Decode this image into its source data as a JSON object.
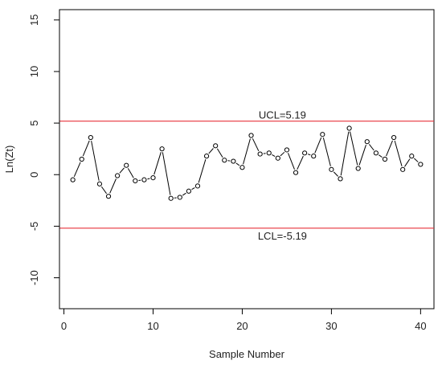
{
  "chart_data": {
    "type": "line",
    "title": "",
    "xlabel": "Sample Number",
    "ylabel": "Ln(Zt)",
    "xlim": [
      -0.5,
      41.5
    ],
    "ylim": [
      -13,
      16
    ],
    "xticks": [
      0,
      10,
      20,
      30,
      40
    ],
    "yticks": [
      -10,
      -5,
      0,
      5,
      10,
      15
    ],
    "xtick_labels": [
      "0",
      "10",
      "20",
      "30",
      "40"
    ],
    "ytick_labels": [
      "-10",
      "-5",
      "0",
      "5",
      "10",
      "15"
    ],
    "grid": false,
    "series": [
      {
        "x": [
          1,
          2,
          3,
          4,
          5,
          6,
          7,
          8,
          9,
          10,
          11,
          12,
          13,
          14,
          15,
          16,
          17,
          18,
          19,
          20,
          21,
          22,
          23,
          24,
          25,
          26,
          27,
          28,
          29,
          30,
          31,
          32,
          33,
          34,
          35,
          36,
          37,
          38,
          39,
          40
        ],
        "values": [
          -0.5,
          1.5,
          3.6,
          -0.9,
          -2.1,
          -0.1,
          0.9,
          -0.6,
          -0.5,
          -0.3,
          2.5,
          -2.3,
          -2.2,
          -1.6,
          -1.1,
          1.8,
          2.8,
          1.4,
          1.3,
          0.7,
          3.8,
          2.0,
          2.1,
          1.6,
          2.4,
          0.2,
          2.1,
          1.8,
          3.9,
          0.5,
          -0.4,
          4.5,
          0.6,
          3.2,
          2.1,
          1.5,
          3.6,
          0.5,
          1.8,
          1.0
        ],
        "style": "points-connected",
        "color": "#000000"
      }
    ],
    "control_lines": [
      {
        "value": 5.19,
        "label": "UCL=5.19",
        "color": "#e8323c"
      },
      {
        "value": -5.19,
        "label": "LCL=-5.19",
        "color": "#e8323c"
      }
    ]
  }
}
